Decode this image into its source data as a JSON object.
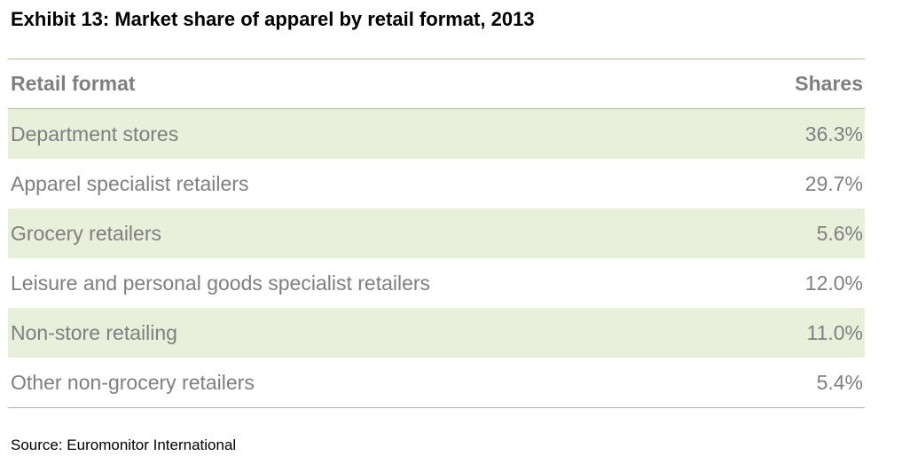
{
  "header": {
    "title": "Exhibit 13: Market share of apparel by retail format, 2013"
  },
  "table": {
    "columns": [
      "Retail format",
      "Shares"
    ],
    "rows": [
      [
        "Department stores",
        "36.3%"
      ],
      [
        "Apparel specialist retailers",
        "29.7%"
      ],
      [
        "Grocery retailers",
        "5.6%"
      ],
      [
        "Leisure and personal goods specialist retailers",
        "12.0%"
      ],
      [
        "Non-store retailing",
        "11.0%"
      ],
      [
        "Other non-grocery retailers",
        "5.4%"
      ]
    ]
  },
  "footer": {
    "source": "Source: Euromonitor International"
  }
}
